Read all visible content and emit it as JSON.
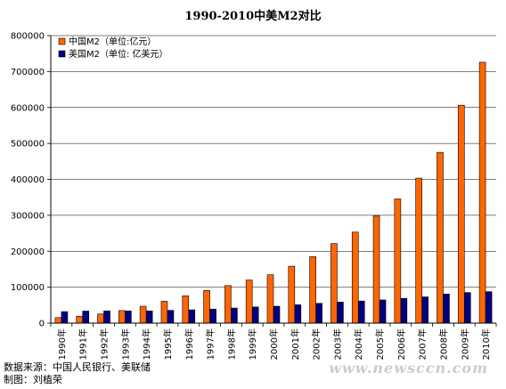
{
  "chart_data": {
    "type": "bar",
    "title": "1990-2010中美M2对比",
    "categories": [
      "1990年",
      "1991年",
      "1992年",
      "1993年",
      "1994年",
      "1995年",
      "1996年",
      "1997年",
      "1998年",
      "1999年",
      "2000年",
      "2001年",
      "2002年",
      "2003年",
      "2004年",
      "2005年",
      "2006年",
      "2007年",
      "2008年",
      "2009年",
      "2010年"
    ],
    "series": [
      {
        "name": "中国M2（单位:亿元）",
        "color": "#ff6600",
        "values": [
          15293,
          19350,
          25402,
          34880,
          46924,
          60751,
          76095,
          90995,
          104499,
          119898,
          134610,
          158302,
          185007,
          221223,
          253208,
          298756,
          345578,
          403442,
          475167,
          606225,
          725852
        ]
      },
      {
        "name": "美国M2（单位: 亿美元）",
        "color": "#000080",
        "values": [
          32000,
          33500,
          34000,
          34000,
          34000,
          35500,
          37000,
          39000,
          42000,
          45000,
          47000,
          51000,
          55000,
          58500,
          61500,
          64500,
          69000,
          73000,
          81000,
          85000,
          87500
        ]
      }
    ],
    "ylim": [
      0,
      800000
    ],
    "yticks": [
      0,
      100000,
      200000,
      300000,
      400000,
      500000,
      600000,
      700000,
      800000
    ],
    "xlabel": "",
    "ylabel": "",
    "grid": true,
    "legend": "top-left"
  },
  "notes": {
    "source": "数据来源：中国人民银行、美联储",
    "author": "制图：刘植荣"
  },
  "watermark": "www.newsccn.com"
}
